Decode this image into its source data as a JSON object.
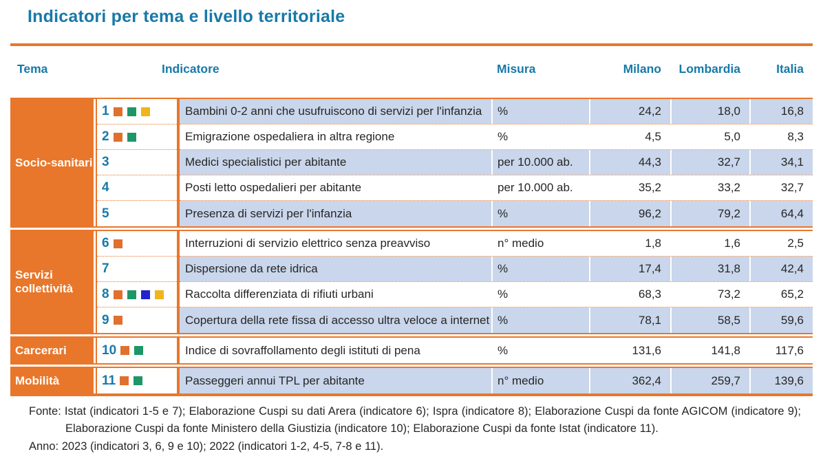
{
  "title": "Indicatori per tema e livello territoriale",
  "columns": {
    "tema": "Tema",
    "indicatore": "Indicatore",
    "misura": "Misura",
    "milano": "Milano",
    "lombardia": "Lombardia",
    "italia": "Italia"
  },
  "colors": {
    "accent_orange": "#E8772B",
    "heading_blue": "#1779A8",
    "row_shade_blue": "#C9D6EB",
    "square_orange": "#E0702E",
    "square_green": "#1D9668",
    "square_blue": "#2222CF",
    "square_yellow": "#F0B41C"
  },
  "groups": [
    {
      "tema": "Socio-sanitari",
      "rows": [
        {
          "num": "1",
          "squares": [
            "orange",
            "green",
            "yellow"
          ],
          "indicatore": "Bambini 0-2 anni che usufruiscono di servizi per l'infanzia",
          "misura": "%",
          "milano": "24,2",
          "lombardia": "18,0",
          "italia": "16,8",
          "shade": true
        },
        {
          "num": "2",
          "squares": [
            "orange",
            "green"
          ],
          "indicatore": "Emigrazione ospedaliera in altra regione",
          "misura": "%",
          "milano": "4,5",
          "lombardia": "5,0",
          "italia": "8,3",
          "shade": false
        },
        {
          "num": "3",
          "squares": [],
          "indicatore": "Medici specialistici per abitante",
          "misura": "per 10.000 ab.",
          "milano": "44,3",
          "lombardia": "32,7",
          "italia": "34,1",
          "shade": true
        },
        {
          "num": "4",
          "squares": [],
          "indicatore": "Posti letto ospedalieri per abitante",
          "misura": "per 10.000 ab.",
          "milano": "35,2",
          "lombardia": "33,2",
          "italia": "32,7",
          "shade": false
        },
        {
          "num": "5",
          "squares": [],
          "indicatore": "Presenza di servizi per l'infanzia",
          "misura": "%",
          "milano": "96,2",
          "lombardia": "79,2",
          "italia": "64,4",
          "shade": true
        }
      ]
    },
    {
      "tema": "Servizi collettività",
      "rows": [
        {
          "num": "6",
          "squares": [
            "orange"
          ],
          "indicatore": "Interruzioni di servizio elettrico senza preavviso",
          "misura": "n° medio",
          "milano": "1,8",
          "lombardia": "1,6",
          "italia": "2,5",
          "shade": false
        },
        {
          "num": "7",
          "squares": [],
          "indicatore": "Dispersione da rete idrica",
          "misura": "%",
          "milano": "17,4",
          "lombardia": "31,8",
          "italia": "42,4",
          "shade": true
        },
        {
          "num": "8",
          "squares": [
            "orange",
            "green",
            "blue",
            "yellow"
          ],
          "indicatore": "Raccolta differenziata di rifiuti urbani",
          "misura": "%",
          "milano": "68,3",
          "lombardia": "73,2",
          "italia": "65,2",
          "shade": false
        },
        {
          "num": "9",
          "squares": [
            "orange"
          ],
          "indicatore": "Copertura della rete fissa di accesso ultra veloce a internet",
          "misura": "%",
          "milano": "78,1",
          "lombardia": "58,5",
          "italia": "59,6",
          "shade": true
        }
      ]
    },
    {
      "tema": "Carcerari",
      "rows": [
        {
          "num": "10",
          "squares": [
            "orange",
            "green"
          ],
          "indicatore": "Indice di sovraffollamento degli istituti di pena",
          "misura": "%",
          "milano": "131,6",
          "lombardia": "141,8",
          "italia": "117,6",
          "shade": false
        }
      ]
    },
    {
      "tema": "Mobilità",
      "rows": [
        {
          "num": "11",
          "squares": [
            "orange",
            "green"
          ],
          "indicatore": "Passeggeri annui TPL per abitante",
          "misura": "n° medio",
          "milano": "362,4",
          "lombardia": "259,7",
          "italia": "139,6",
          "shade": true
        }
      ]
    }
  ],
  "footer": {
    "fonte": "Fonte: Istat (indicatori 1-5 e 7); Elaborazione Cuspi su dati Arera (indicatore 6); Ispra (indicatore 8); Elaborazione Cuspi da fonte AGICOM (indicatore 9); Elaborazione Cuspi da fonte Ministero della Giustizia (indicatore 10); Elaborazione Cuspi da fonte Istat (indicatore 11).",
    "anno": "Anno: 2023 (indicatori 3, 6, 9 e 10); 2022 (indicatori 1-2, 4-5, 7-8 e 11)."
  }
}
